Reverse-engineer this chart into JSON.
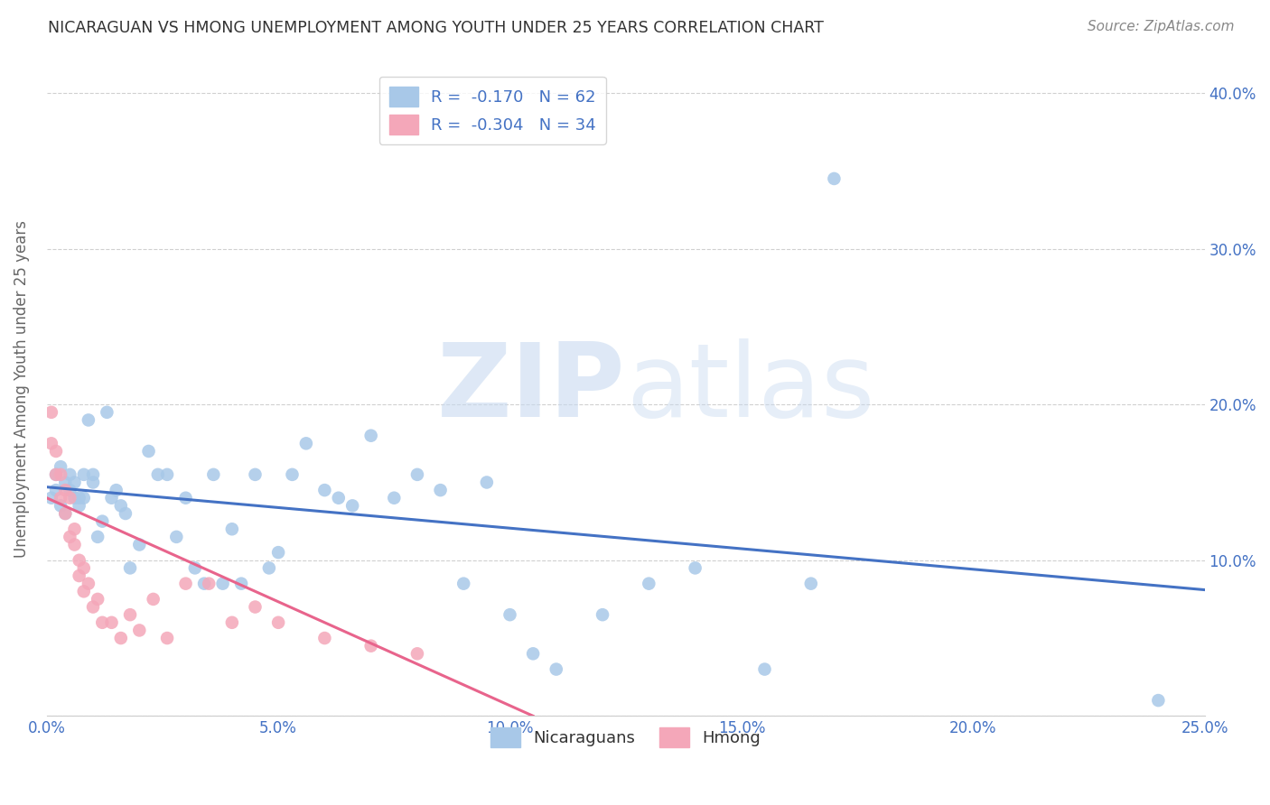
{
  "title": "NICARAGUAN VS HMONG UNEMPLOYMENT AMONG YOUTH UNDER 25 YEARS CORRELATION CHART",
  "source": "Source: ZipAtlas.com",
  "ylabel": "Unemployment Among Youth under 25 years",
  "xlim": [
    0.0,
    0.25
  ],
  "ylim": [
    0.0,
    0.42
  ],
  "xticks": [
    0.0,
    0.05,
    0.1,
    0.15,
    0.2,
    0.25
  ],
  "yticks": [
    0.0,
    0.1,
    0.2,
    0.3,
    0.4
  ],
  "blue_color": "#a8c8e8",
  "blue_line_color": "#4472c4",
  "pink_color": "#f4a7b9",
  "pink_line_color": "#e8648c",
  "legend_blue_R": "R =  -0.170",
  "legend_blue_N": "N = 62",
  "legend_pink_R": "R =  -0.304",
  "legend_pink_N": "N = 34",
  "watermark_zip": "ZIP",
  "watermark_atlas": "atlas",
  "nicaraguan_x": [
    0.001,
    0.002,
    0.002,
    0.003,
    0.003,
    0.004,
    0.004,
    0.005,
    0.005,
    0.006,
    0.006,
    0.007,
    0.007,
    0.008,
    0.008,
    0.009,
    0.01,
    0.01,
    0.011,
    0.012,
    0.013,
    0.014,
    0.015,
    0.016,
    0.017,
    0.018,
    0.02,
    0.022,
    0.024,
    0.026,
    0.028,
    0.03,
    0.032,
    0.034,
    0.036,
    0.038,
    0.04,
    0.042,
    0.045,
    0.048,
    0.05,
    0.053,
    0.056,
    0.06,
    0.063,
    0.066,
    0.07,
    0.075,
    0.08,
    0.085,
    0.09,
    0.095,
    0.1,
    0.105,
    0.11,
    0.12,
    0.13,
    0.14,
    0.155,
    0.165,
    0.17,
    0.24
  ],
  "nicaraguan_y": [
    0.14,
    0.145,
    0.155,
    0.135,
    0.16,
    0.13,
    0.15,
    0.145,
    0.155,
    0.14,
    0.15,
    0.14,
    0.135,
    0.155,
    0.14,
    0.19,
    0.15,
    0.155,
    0.115,
    0.125,
    0.195,
    0.14,
    0.145,
    0.135,
    0.13,
    0.095,
    0.11,
    0.17,
    0.155,
    0.155,
    0.115,
    0.14,
    0.095,
    0.085,
    0.155,
    0.085,
    0.12,
    0.085,
    0.155,
    0.095,
    0.105,
    0.155,
    0.175,
    0.145,
    0.14,
    0.135,
    0.18,
    0.14,
    0.155,
    0.145,
    0.085,
    0.15,
    0.065,
    0.04,
    0.03,
    0.065,
    0.085,
    0.095,
    0.03,
    0.085,
    0.345,
    0.01
  ],
  "hmong_x": [
    0.001,
    0.001,
    0.002,
    0.002,
    0.003,
    0.003,
    0.004,
    0.004,
    0.005,
    0.005,
    0.006,
    0.006,
    0.007,
    0.007,
    0.008,
    0.008,
    0.009,
    0.01,
    0.011,
    0.012,
    0.014,
    0.016,
    0.018,
    0.02,
    0.023,
    0.026,
    0.03,
    0.035,
    0.04,
    0.045,
    0.05,
    0.06,
    0.07,
    0.08
  ],
  "hmong_y": [
    0.195,
    0.175,
    0.17,
    0.155,
    0.155,
    0.14,
    0.145,
    0.13,
    0.14,
    0.115,
    0.12,
    0.11,
    0.1,
    0.09,
    0.095,
    0.08,
    0.085,
    0.07,
    0.075,
    0.06,
    0.06,
    0.05,
    0.065,
    0.055,
    0.075,
    0.05,
    0.085,
    0.085,
    0.06,
    0.07,
    0.06,
    0.05,
    0.045,
    0.04
  ],
  "blue_trend_x": [
    0.0,
    0.25
  ],
  "blue_trend_y": [
    0.147,
    0.081
  ],
  "pink_trend_x": [
    0.0,
    0.105
  ],
  "pink_trend_y": [
    0.14,
    0.0
  ],
  "background_color": "#ffffff",
  "grid_color": "#d0d0d0"
}
